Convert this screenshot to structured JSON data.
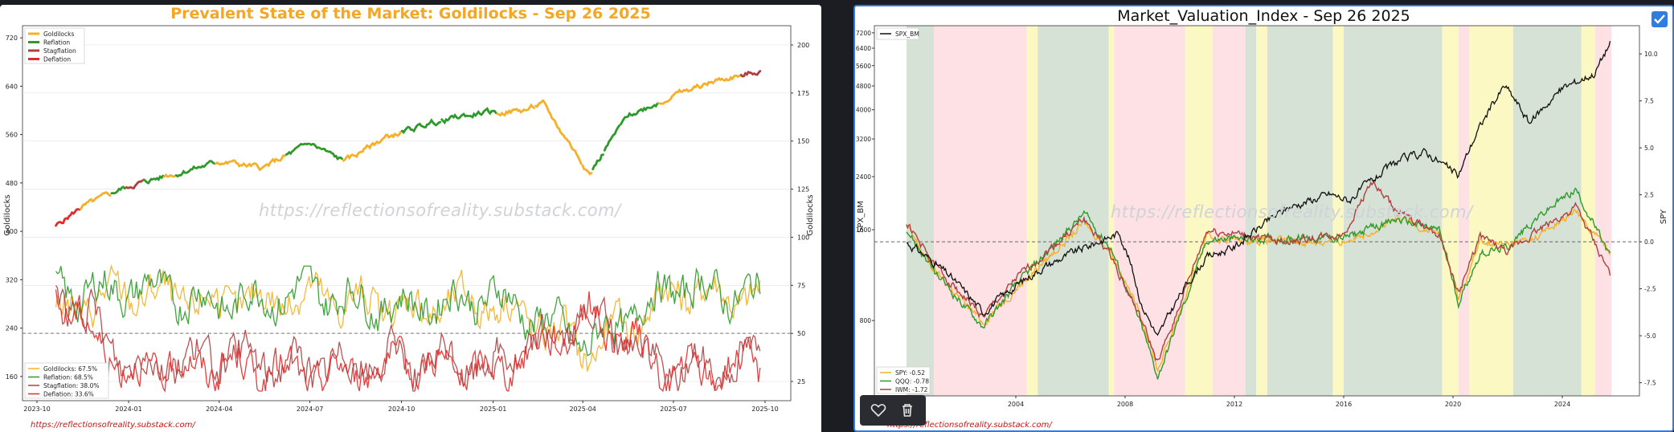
{
  "left_chart": {
    "title": "Prevalent State of the Market: Goldilocks - Sep 26 2025",
    "watermark": "https://reflectionsofreality.substack.com/",
    "footer": "https://reflectionsofreality.substack.com/",
    "ylabel_left": "Goldilocks",
    "ylabel_right": "Goldilocks",
    "y_left_ticks": [
      "720",
      "640",
      "560",
      "480",
      "400",
      "320",
      "240",
      "160"
    ],
    "y_right_ticks": [
      "200",
      "175",
      "150",
      "125",
      "100",
      "75",
      "50",
      "25"
    ],
    "x_ticks": [
      "2023-10",
      "2024-01",
      "2024-04",
      "2024-07",
      "2024-10",
      "2025-01",
      "2025-04",
      "2025-07",
      "2025-10"
    ],
    "legend_top": [
      "Goldilocks",
      "Reflation",
      "Stagflation",
      "Deflation"
    ],
    "legend_bottom": [
      "Goldilocks: 67.5%",
      "Reflation: 68.5%",
      "Stagflation: 38.0%",
      "Deflation: 33.6%"
    ],
    "colors": {
      "goldilocks": "#f5b027",
      "reflation": "#2e9a2a",
      "stagflation": "#b04040",
      "deflation": "#e22b2b"
    }
  },
  "right_chart": {
    "title": "Market_Valuation_Index  - Sep 26 2025",
    "watermark": "https://reflectionsofreality.substack.com/",
    "footer": "https://reflectionsofreality.substack.com/",
    "ylabel_left": "SPX_BM",
    "ylabel_right": "SPY",
    "y_left_ticks": [
      "7200",
      "6400",
      "5600",
      "4800",
      "4000",
      "3200",
      "2400",
      "1600",
      "800"
    ],
    "y_right_ticks": [
      "10.0",
      "7.5",
      "5.0",
      "2.5",
      "0.0",
      "-2.5",
      "-5.0",
      "-7.5"
    ],
    "x_ticks": [
      "2004",
      "2008",
      "2012",
      "2016",
      "2020",
      "2024"
    ],
    "legend_top": [
      "SPX_BM"
    ],
    "legend_bottom": [
      "SPY: -0.52",
      "QQQ: -0.78",
      "IWM: -1.72"
    ],
    "colors": {
      "spx": "#111111",
      "spy": "#f5b027",
      "qqq": "#2e9a2a",
      "iwm": "#b04040",
      "regime_green": "#d6e2d6",
      "regime_pink": "#fde1e4",
      "regime_yellow": "#fbf8c4"
    }
  },
  "chart_data": [
    {
      "type": "line",
      "title": "Prevalent State of the Market: Goldilocks - Sep 26 2025",
      "xlabel": "",
      "ylabel": "Goldilocks",
      "x_range": [
        "2023-10",
        "2025-10"
      ],
      "ylim_left": [
        120,
        740
      ],
      "ylim_right": [
        15,
        210
      ],
      "series": [
        {
          "name": "Goldilocks",
          "axis": "left",
          "x": [
            "2023-10-20",
            "2023-11-15",
            "2024-01-01",
            "2024-02-15",
            "2024-04-01",
            "2024-05-15",
            "2024-07-01",
            "2024-08-05",
            "2024-09-15",
            "2024-11-01",
            "2024-12-15",
            "2025-02-01",
            "2025-02-20",
            "2025-04-08",
            "2025-05-15",
            "2025-07-01",
            "2025-08-15",
            "2025-09-26"
          ],
          "values": [
            410,
            440,
            475,
            495,
            515,
            505,
            545,
            515,
            555,
            580,
            595,
            600,
            610,
            495,
            590,
            625,
            650,
            665
          ]
        },
        {
          "name": "Goldilocks: 67.5%",
          "axis": "right",
          "x": [
            "2023-10-20",
            "2024-01-01",
            "2024-04-01",
            "2024-07-01",
            "2024-10-01",
            "2025-01-01",
            "2025-04-08",
            "2025-07-01",
            "2025-09-26"
          ],
          "values": [
            60,
            72,
            65,
            70,
            62,
            68,
            40,
            72,
            67.5
          ]
        },
        {
          "name": "Reflation: 68.5%",
          "axis": "right",
          "x": [
            "2023-10-20",
            "2024-01-01",
            "2024-04-01",
            "2024-07-01",
            "2024-10-01",
            "2025-01-01",
            "2025-04-08",
            "2025-07-01",
            "2025-09-26"
          ],
          "values": [
            70,
            74,
            66,
            72,
            64,
            70,
            44,
            75,
            68.5
          ]
        },
        {
          "name": "Stagflation: 38.0%",
          "axis": "right",
          "x": [
            "2023-10-20",
            "2024-01-01",
            "2024-04-01",
            "2024-07-01",
            "2024-10-01",
            "2025-01-01",
            "2025-04-08",
            "2025-07-01",
            "2025-09-26"
          ],
          "values": [
            75,
            34,
            38,
            32,
            36,
            34,
            58,
            30,
            38
          ]
        },
        {
          "name": "Deflation: 33.6%",
          "axis": "right",
          "x": [
            "2023-10-20",
            "2024-01-01",
            "2024-04-01",
            "2024-07-01",
            "2024-10-01",
            "2025-01-01",
            "2025-04-08",
            "2025-07-01",
            "2025-09-26"
          ],
          "values": [
            70,
            30,
            34,
            28,
            34,
            30,
            60,
            28,
            33.6
          ]
        }
      ],
      "hline": 50
    },
    {
      "type": "line",
      "title": "Market_Valuation_Index  - Sep 26 2025",
      "xlabel": "",
      "ylabel": "SPX_BM",
      "x_range": [
        2000,
        2026
      ],
      "log_scale_left": true,
      "ylim_left": [
        450,
        7600
      ],
      "ylim_right": [
        -8.2,
        11.5
      ],
      "series": [
        {
          "name": "SPX_BM",
          "axis": "left",
          "x": [
            2000,
            2001,
            2002.8,
            2003.5,
            2005,
            2007.8,
            2008.6,
            2009.2,
            2011,
            2012,
            2014,
            2015.5,
            2016.2,
            2018,
            2019,
            2020.2,
            2021.9,
            2022.8,
            2024,
            2025.2,
            2025.75
          ],
          "values": [
            1450,
            1250,
            850,
            960,
            1200,
            1560,
            900,
            700,
            1300,
            1400,
            1900,
            2100,
            2000,
            2700,
            2900,
            2400,
            4800,
            3600,
            4700,
            5300,
            6650
          ]
        },
        {
          "name": "SPY: -0.52",
          "axis": "right",
          "x": [
            2000,
            2001,
            2002.8,
            2004,
            2006.5,
            2007.5,
            2008.6,
            2009.2,
            2011,
            2014,
            2016,
            2018,
            2019.5,
            2020.2,
            2021,
            2022,
            2023,
            2024.5,
            2025.75
          ],
          "values": [
            0.8,
            -1.5,
            -4.3,
            -2.5,
            1.0,
            -0.5,
            -4,
            -6.8,
            0.2,
            0,
            0,
            1.2,
            0.5,
            -3,
            0,
            -0.2,
            0.2,
            1.6,
            -0.52
          ]
        },
        {
          "name": "QQQ: -0.78",
          "axis": "right",
          "x": [
            2000,
            2001,
            2002.8,
            2004,
            2006.5,
            2007.5,
            2008.6,
            2009.2,
            2011,
            2014,
            2016,
            2018,
            2019.5,
            2020.2,
            2021,
            2022,
            2023,
            2024.5,
            2025.75
          ],
          "values": [
            0.7,
            -1.6,
            -4.5,
            -2.3,
            1.5,
            -0.4,
            -4.5,
            -7.2,
            0.1,
            0.2,
            0.2,
            1.2,
            0.6,
            -3.2,
            -0.6,
            -0.3,
            1.2,
            2.8,
            -0.78
          ]
        },
        {
          "name": "IWM: -1.72",
          "axis": "right",
          "x": [
            2000,
            2001,
            2002.8,
            2004,
            2006.5,
            2007.5,
            2008.6,
            2009.2,
            2011,
            2014,
            2016,
            2017,
            2018,
            2019.5,
            2020.2,
            2021,
            2022,
            2023,
            2024.5,
            2025.75
          ],
          "values": [
            1.0,
            -1.2,
            -4.0,
            -2.0,
            1.2,
            -0.8,
            -4.2,
            -6.5,
            0.6,
            0,
            0.4,
            3.2,
            1.5,
            0.4,
            -2.8,
            0.3,
            -0.6,
            0.5,
            1.8,
            -1.72
          ]
        }
      ],
      "hline": 0
    }
  ]
}
